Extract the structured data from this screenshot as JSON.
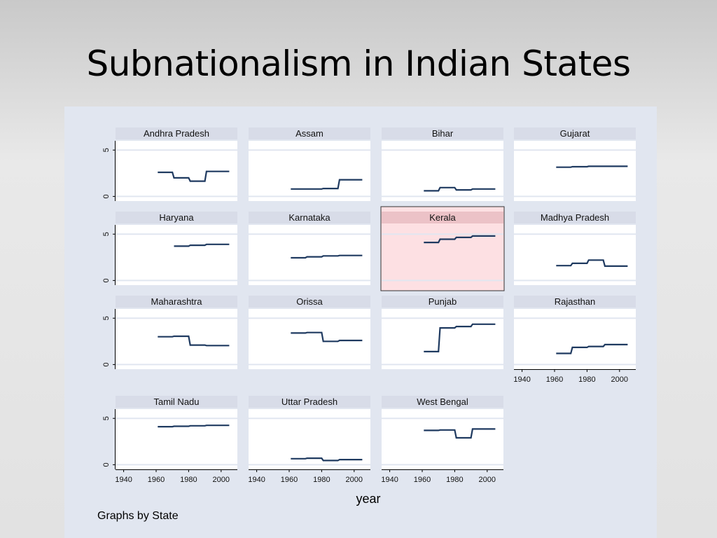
{
  "slide": {
    "title": "Subnationalism in Indian States"
  },
  "chart_data": {
    "type": "line",
    "note": "Graphs by State",
    "xlabel": "year",
    "ylabel": "",
    "xlim": [
      1935,
      2010
    ],
    "ylim": [
      -0.5,
      6
    ],
    "xticks": [
      1940,
      1960,
      1980,
      2000
    ],
    "yticks": [
      0,
      5
    ],
    "line_color": "#1f3a60",
    "highlight": {
      "panel": "Kerala",
      "color": "#fde0e3"
    },
    "panels": [
      {
        "name": "Andhra Pradesh",
        "x": [
          1961,
          1970,
          1971,
          1980,
          1981,
          1990,
          1991,
          2005
        ],
        "y": [
          2.6,
          2.6,
          2.0,
          2.0,
          1.65,
          1.65,
          2.7,
          2.7
        ]
      },
      {
        "name": "Assam",
        "x": [
          1961,
          1970,
          1971,
          1980,
          1981,
          1990,
          1991,
          2005
        ],
        "y": [
          0.8,
          0.8,
          0.8,
          0.8,
          0.85,
          0.85,
          1.8,
          1.8
        ]
      },
      {
        "name": "Bihar",
        "x": [
          1961,
          1970,
          1971,
          1980,
          1981,
          1990,
          1991,
          2005
        ],
        "y": [
          0.6,
          0.6,
          0.95,
          0.95,
          0.7,
          0.7,
          0.8,
          0.8
        ]
      },
      {
        "name": "Gujarat",
        "x": [
          1961,
          1970,
          1971,
          1980,
          1981,
          1990,
          1991,
          2005
        ],
        "y": [
          3.15,
          3.15,
          3.2,
          3.2,
          3.25,
          3.25,
          3.25,
          3.25
        ]
      },
      {
        "name": "Haryana",
        "x": [
          1971,
          1980,
          1981,
          1990,
          1991,
          2005
        ],
        "y": [
          3.7,
          3.7,
          3.8,
          3.8,
          3.9,
          3.9
        ]
      },
      {
        "name": "Karnataka",
        "x": [
          1961,
          1970,
          1971,
          1980,
          1981,
          1990,
          1991,
          2005
        ],
        "y": [
          2.45,
          2.45,
          2.55,
          2.55,
          2.65,
          2.65,
          2.7,
          2.7
        ]
      },
      {
        "name": "Kerala",
        "x": [
          1961,
          1970,
          1971,
          1980,
          1981,
          1990,
          1991,
          2005
        ],
        "y": [
          4.1,
          4.1,
          4.45,
          4.45,
          4.65,
          4.65,
          4.8,
          4.8
        ]
      },
      {
        "name": "Madhya Pradesh",
        "x": [
          1961,
          1970,
          1971,
          1980,
          1981,
          1990,
          1991,
          2005
        ],
        "y": [
          1.6,
          1.6,
          1.85,
          1.85,
          2.2,
          2.2,
          1.55,
          1.55
        ]
      },
      {
        "name": "Maharashtra",
        "x": [
          1961,
          1970,
          1971,
          1980,
          1981,
          1990,
          1991,
          2005
        ],
        "y": [
          3.0,
          3.0,
          3.05,
          3.05,
          2.1,
          2.1,
          2.05,
          2.05
        ]
      },
      {
        "name": "Orissa",
        "x": [
          1961,
          1970,
          1971,
          1980,
          1981,
          1990,
          1991,
          2005
        ],
        "y": [
          3.4,
          3.4,
          3.45,
          3.45,
          2.5,
          2.5,
          2.6,
          2.6
        ]
      },
      {
        "name": "Punjab",
        "x": [
          1961,
          1970,
          1971,
          1980,
          1981,
          1990,
          1991,
          2005
        ],
        "y": [
          1.4,
          1.4,
          3.95,
          3.95,
          4.1,
          4.1,
          4.35,
          4.35
        ]
      },
      {
        "name": "Rajasthan",
        "x": [
          1961,
          1970,
          1971,
          1980,
          1981,
          1990,
          1991,
          2005
        ],
        "y": [
          1.2,
          1.2,
          1.85,
          1.85,
          1.95,
          1.95,
          2.15,
          2.15
        ]
      },
      {
        "name": "Tamil Nadu",
        "x": [
          1961,
          1970,
          1971,
          1980,
          1981,
          1990,
          1991,
          2005
        ],
        "y": [
          4.1,
          4.1,
          4.15,
          4.15,
          4.2,
          4.2,
          4.25,
          4.25
        ]
      },
      {
        "name": "Uttar Pradesh",
        "x": [
          1961,
          1970,
          1971,
          1980,
          1981,
          1990,
          1991,
          2005
        ],
        "y": [
          0.65,
          0.65,
          0.7,
          0.7,
          0.45,
          0.45,
          0.55,
          0.55
        ]
      },
      {
        "name": "West Bengal",
        "x": [
          1961,
          1970,
          1971,
          1980,
          1981,
          1990,
          1991,
          2005
        ],
        "y": [
          3.7,
          3.7,
          3.75,
          3.75,
          2.9,
          2.9,
          3.85,
          3.85
        ]
      }
    ]
  }
}
